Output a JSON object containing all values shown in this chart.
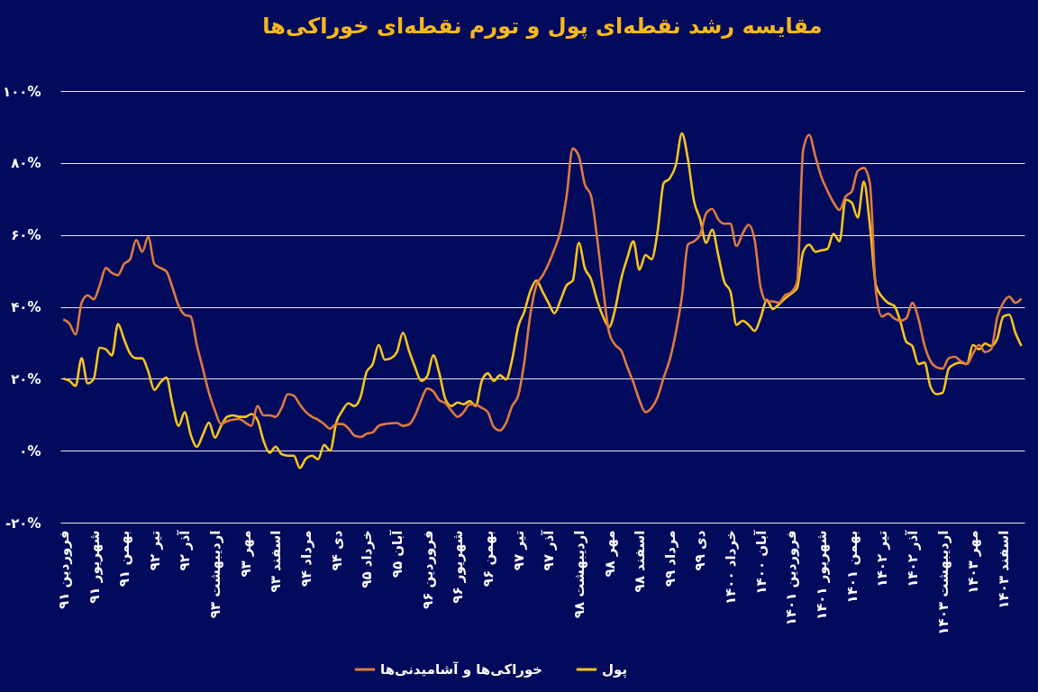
{
  "chart_data": {
    "type": "line",
    "title": "مقایسه رشد نقطه‌ای پول و تورم نقطه‌ای خوراکی‌ها",
    "categories": [
      "فروردین ۹۱",
      null,
      null,
      null,
      null,
      "شهریور ۹۱",
      null,
      null,
      null,
      null,
      "بهمن ۹۱",
      null,
      null,
      null,
      null,
      "تیر ۹۲",
      null,
      null,
      null,
      null,
      "آذر ۹۲",
      null,
      null,
      null,
      null,
      "اردیبهشت ۹۳",
      null,
      null,
      null,
      null,
      "مهر ۹۳",
      null,
      null,
      null,
      null,
      "اسفند ۹۳",
      null,
      null,
      null,
      null,
      "مرداد ۹۴",
      null,
      null,
      null,
      null,
      "دی ۹۴",
      null,
      null,
      null,
      null,
      "خرداد ۹۵",
      null,
      null,
      null,
      null,
      "آبان ۹۵",
      null,
      null,
      null,
      null,
      "فروردین ۹۶",
      null,
      null,
      null,
      null,
      "شهریور ۹۶",
      null,
      null,
      null,
      null,
      "بهمن ۹۶",
      null,
      null,
      null,
      null,
      "تیر ۹۷",
      null,
      null,
      null,
      null,
      "آذر ۹۷",
      null,
      null,
      null,
      null,
      "اردیبهشت ۹۸",
      null,
      null,
      null,
      null,
      "مهر ۹۸",
      null,
      null,
      null,
      null,
      "اسفند ۹۸",
      null,
      null,
      null,
      null,
      "مرداد ۹۹",
      null,
      null,
      null,
      null,
      "دی ۹۹",
      null,
      null,
      null,
      null,
      "خرداد ۱۴۰۰",
      null,
      null,
      null,
      null,
      "آبان ۱۴۰۰",
      null,
      null,
      null,
      null,
      "فروردین ۱۴۰۱",
      null,
      null,
      null,
      null,
      "شهریور ۱۴۰۱",
      null,
      null,
      null,
      null,
      "بهمن ۱۴۰۱",
      null,
      null,
      null,
      null,
      "تیر ۱۴۰۲",
      null,
      null,
      null,
      null,
      "آذر ۱۴۰۲",
      null,
      null,
      null,
      null,
      "اردیبهشت ۱۴۰۳",
      null,
      null,
      null,
      null,
      "مهر ۱۴۰۳",
      null,
      null,
      null,
      null,
      "اسفند ۱۴۰۳",
      null,
      null,
      null
    ],
    "series": [
      {
        "name": "پول",
        "color": "#f7c51e",
        "values": [
          20,
          19.4,
          18,
          25.7,
          18.7,
          20,
          28.6,
          28.2,
          26.5,
          35.2,
          31,
          27,
          25.7,
          25.7,
          22,
          16.9,
          19,
          20.3,
          12.8,
          6.9,
          10.7,
          4.4,
          1.1,
          4.4,
          7.8,
          3.6,
          6.9,
          9.4,
          9.8,
          9.4,
          9.4,
          10.2,
          8.6,
          2.8,
          -0.6,
          1.1,
          -1,
          -1.4,
          -1.4,
          -4.8,
          -2.2,
          -1.4,
          -2.4,
          1.6,
          0,
          7.8,
          11.1,
          13.2,
          12.4,
          14.9,
          21.9,
          24,
          29.4,
          25.3,
          25.7,
          27.4,
          32.8,
          27.8,
          23.2,
          19.4,
          20.7,
          26.5,
          21.5,
          14.3,
          12.4,
          13.4,
          12.9,
          13.8,
          12.4,
          19.4,
          21.5,
          19.4,
          21,
          19.8,
          25.3,
          34.4,
          38.6,
          44.3,
          47.3,
          44.3,
          41.1,
          38.2,
          41.9,
          46,
          47.3,
          57.8,
          50.7,
          47.8,
          41.9,
          37.3,
          34.4,
          39.4,
          47.8,
          53.6,
          58.2,
          50.3,
          54.4,
          53.2,
          61,
          74.4,
          75.7,
          79.4,
          88.2,
          81,
          69.4,
          64.4,
          57.8,
          61.5,
          54.4,
          46.9,
          44.3,
          35,
          36.1,
          35,
          33.3,
          37,
          41.9,
          39.4,
          40.7,
          42.3,
          43.6,
          45.2,
          55.3,
          57.3,
          55.3,
          55.7,
          56.1,
          60.3,
          58.2,
          69.8,
          69,
          64.8,
          74.8,
          62.8,
          46,
          42.8,
          41.1,
          40.3,
          36.1,
          30.3,
          29.1,
          24.1,
          24.5,
          17.8,
          15.7,
          16.1,
          22.8,
          24.1,
          24.5,
          24.1,
          29.4,
          28.2,
          29.8,
          29.1,
          31.1,
          37.3,
          37.8,
          32.8,
          29.1
        ]
      },
      {
        "name": "خوراکی‌ها و آشامیدنی‌ها",
        "color": "#de7b3e",
        "values": [
          36.5,
          35.3,
          32.3,
          41.1,
          43.2,
          42.1,
          46,
          50.8,
          49.4,
          48.8,
          51.9,
          53.2,
          58.6,
          55.3,
          59.4,
          51.9,
          50.8,
          49.8,
          45.3,
          40.3,
          37.8,
          37.3,
          29.4,
          22.8,
          16.1,
          11.1,
          7.4,
          8.2,
          8.6,
          8.8,
          7.8,
          6.9,
          12.4,
          9.8,
          9.8,
          9.4,
          11.9,
          15.7,
          15.3,
          12.8,
          10.7,
          9.4,
          8.6,
          7.4,
          6.1,
          7.4,
          7.4,
          6.2,
          4.2,
          3.8,
          4.7,
          5.1,
          6.9,
          7.4,
          7.6,
          7.7,
          6.9,
          7.3,
          9.8,
          14,
          17.3,
          16.5,
          14,
          13.2,
          11.1,
          9.4,
          10.7,
          12.9,
          12.8,
          11.9,
          10.7,
          6.5,
          5.6,
          7.7,
          12.4,
          15.3,
          24.4,
          37.8,
          46,
          48.6,
          51.9,
          56.1,
          61.1,
          71,
          84,
          81.9,
          74,
          71,
          59.4,
          45.3,
          32.8,
          29.4,
          27.8,
          23.2,
          19,
          14,
          10.7,
          11.9,
          14.9,
          20.3,
          25.3,
          32.8,
          42.8,
          57.3,
          58.2,
          60,
          66,
          67.2,
          64.3,
          63.1,
          63.1,
          56.9,
          60.3,
          62.8,
          58.6,
          45.3,
          41.5,
          41.5,
          41.1,
          43.2,
          44,
          46.9,
          83.6,
          87.8,
          81.9,
          76.1,
          72.3,
          69,
          66.9,
          70.7,
          72,
          77.8,
          78.6,
          74.4,
          44.3,
          37.3,
          38.1,
          36.8,
          36.1,
          36.8,
          41.1,
          36.8,
          29.4,
          24.9,
          23.2,
          22.8,
          25.7,
          26.1,
          24.9,
          24.1,
          27,
          29.4,
          27.4,
          28.2,
          37,
          41.1,
          42.8,
          41.1,
          42.3
        ]
      }
    ],
    "ylim": [
      -20,
      100
    ],
    "yticks": [
      {
        "value": -20,
        "label": "-۲۰%"
      },
      {
        "value": 0,
        "label": "۰%"
      },
      {
        "value": 20,
        "label": "۲۰%"
      },
      {
        "value": 40,
        "label": "۴۰%"
      },
      {
        "value": 60,
        "label": "۶۰%"
      },
      {
        "value": 80,
        "label": "۸۰%"
      },
      {
        "value": 100,
        "label": "۱۰۰%"
      }
    ],
    "grid": "y",
    "legend": "bottom"
  }
}
